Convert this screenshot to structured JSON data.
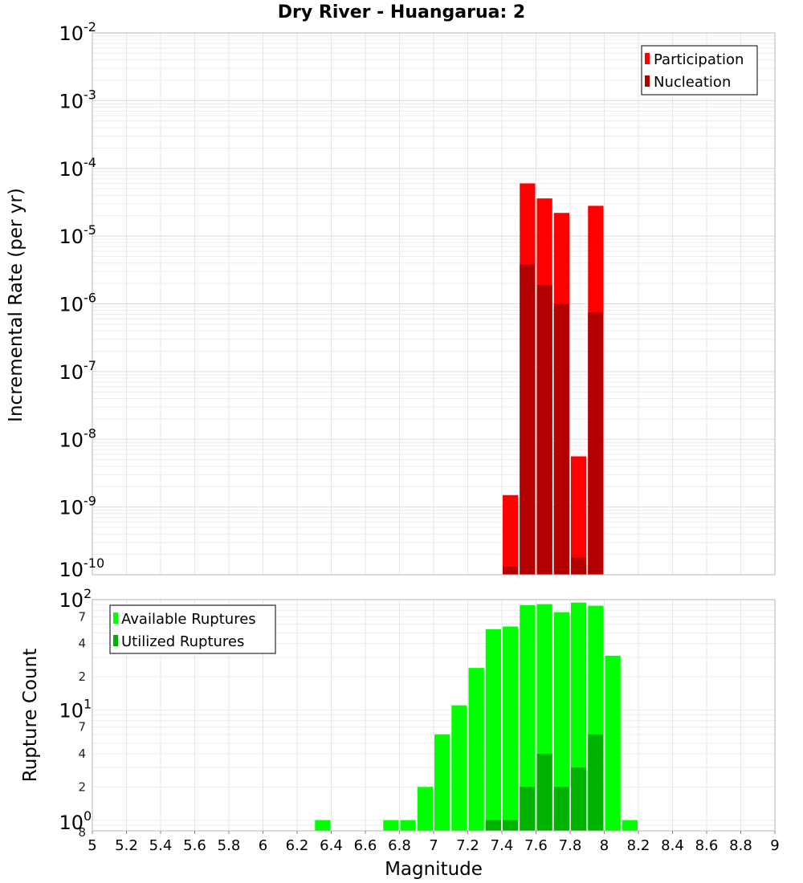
{
  "chart_data": [
    {
      "type": "bar",
      "title": "Dry River - Huangarua: 2",
      "xlabel": "",
      "ylabel": "Incremental Rate (per yr)",
      "yscale": "log",
      "ylim": [
        1e-10,
        0.01
      ],
      "xlim": [
        5,
        9
      ],
      "bar_width": 0.1,
      "grid": true,
      "legend": "top-right",
      "y_ticks": [
        {
          "base": "10",
          "exp": "-2"
        },
        {
          "base": "10",
          "exp": "-3"
        },
        {
          "base": "10",
          "exp": "-4"
        },
        {
          "base": "10",
          "exp": "-5"
        },
        {
          "base": "10",
          "exp": "-6"
        },
        {
          "base": "10",
          "exp": "-7"
        },
        {
          "base": "10",
          "exp": "-8"
        },
        {
          "base": "10",
          "exp": "-9"
        },
        {
          "base": "10",
          "exp": "-10"
        }
      ],
      "series": [
        {
          "name": "Participation",
          "color": "#ff0000",
          "x": [
            7.45,
            7.55,
            7.65,
            7.75,
            7.85,
            7.95
          ],
          "values": [
            1.5e-09,
            6e-05,
            3.6e-05,
            2.2e-05,
            5.6e-09,
            2.8e-05
          ]
        },
        {
          "name": "Nucleation",
          "color": "#b20000",
          "x": [
            7.45,
            7.55,
            7.65,
            7.75,
            7.85,
            7.95
          ],
          "values": [
            1.3e-10,
            3.8e-06,
            1.9e-06,
            1e-06,
            1.8e-10,
            7.5e-07
          ]
        }
      ]
    },
    {
      "type": "bar",
      "title": "",
      "xlabel": "Magnitude",
      "ylabel": "Rupture Count",
      "yscale": "log",
      "ylim": [
        0.8,
        100
      ],
      "xlim": [
        5,
        9
      ],
      "bar_width": 0.1,
      "grid": true,
      "legend": "top-left",
      "x_ticks": [
        "5",
        "5.2",
        "5.4",
        "5.6",
        "5.8",
        "6",
        "6.2",
        "6.4",
        "6.6",
        "6.8",
        "7",
        "7.2",
        "7.4",
        "7.6",
        "7.8",
        "8",
        "8.2",
        "8.4",
        "8.6",
        "8.8",
        "9"
      ],
      "y_major_ticks": [
        {
          "value": 100,
          "base": "10",
          "exp": "2"
        },
        {
          "value": 10,
          "base": "10",
          "exp": "1"
        },
        {
          "value": 1,
          "base": "10",
          "exp": "0"
        }
      ],
      "y_minor_ticks": [
        {
          "value": 70,
          "label": "7"
        },
        {
          "value": 40,
          "label": "4"
        },
        {
          "value": 20,
          "label": "2"
        },
        {
          "value": 7,
          "label": "7"
        },
        {
          "value": 4,
          "label": "4"
        },
        {
          "value": 2,
          "label": "2"
        },
        {
          "value": 0.8,
          "label": "8"
        }
      ],
      "series": [
        {
          "name": "Available Ruptures",
          "color": "#00ff00",
          "x": [
            6.35,
            6.75,
            6.85,
            6.95,
            7.05,
            7.15,
            7.25,
            7.35,
            7.45,
            7.55,
            7.65,
            7.75,
            7.85,
            7.95,
            8.05,
            8.15
          ],
          "values": [
            1,
            1,
            1,
            2,
            6,
            11,
            24,
            54,
            57,
            89,
            91,
            77,
            94,
            88,
            31,
            1
          ]
        },
        {
          "name": "Utilized Ruptures",
          "color": "#00b200",
          "x": [
            7.35,
            7.45,
            7.55,
            7.65,
            7.75,
            7.85,
            7.95
          ],
          "values": [
            1,
            1,
            2,
            4,
            2,
            3,
            6
          ]
        }
      ]
    }
  ]
}
